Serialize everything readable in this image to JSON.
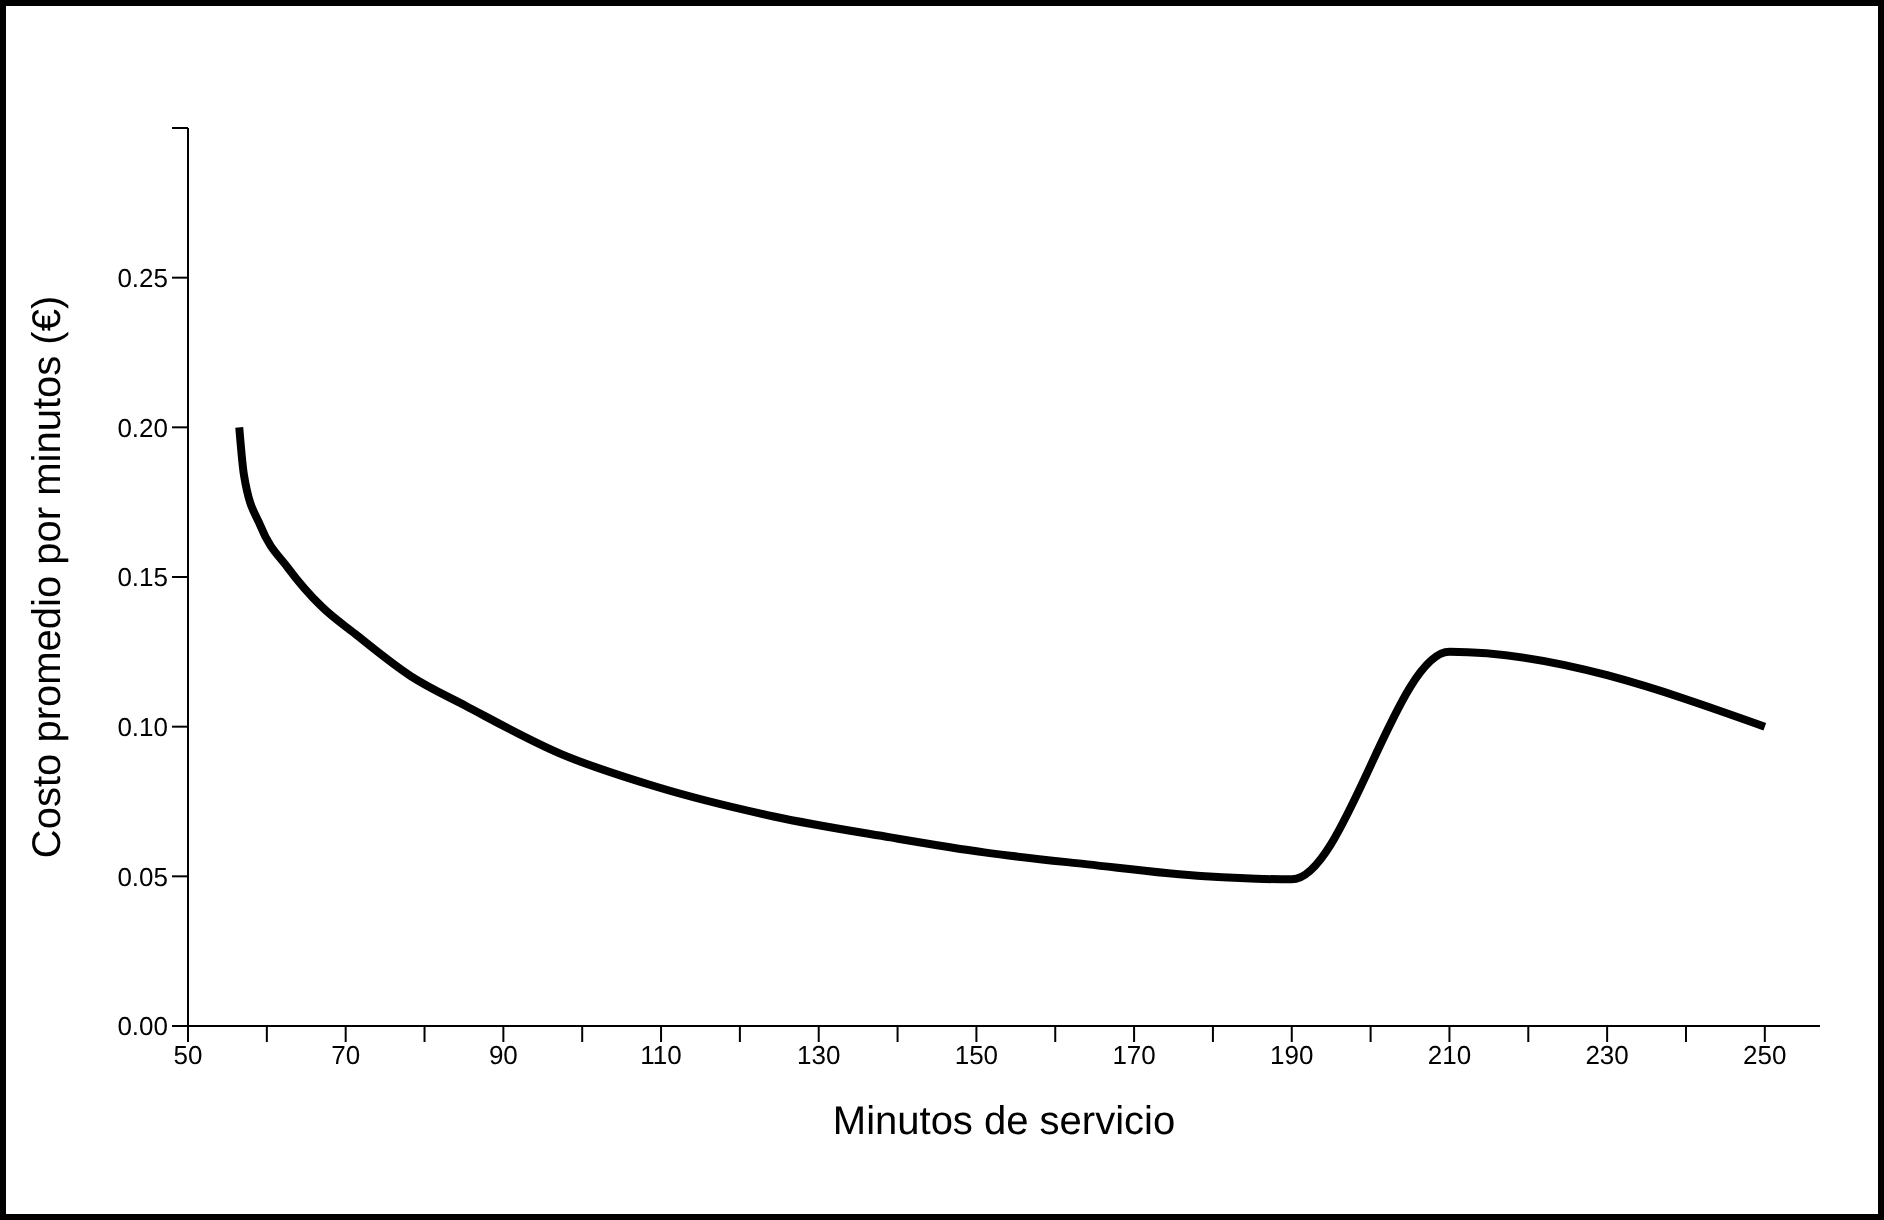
{
  "chart_data": {
    "type": "line",
    "xlabel": "Minutos de servicio",
    "ylabel": "Costo promedio por minutos (€)",
    "xlim": [
      50,
      257
    ],
    "xticks": [
      50,
      {
        "value": 60,
        "label": null
      },
      70,
      {
        "value": 80,
        "label": null
      },
      90,
      {
        "value": 100,
        "label": null
      },
      110,
      {
        "value": 120,
        "label": null
      },
      130,
      {
        "value": 140,
        "label": null
      },
      150,
      {
        "value": 160,
        "label": null
      },
      170,
      {
        "value": 180,
        "label": null
      },
      190,
      {
        "value": 200,
        "label": null
      },
      210,
      {
        "value": 220,
        "label": null
      },
      230,
      {
        "value": 240,
        "label": null
      },
      250
    ],
    "ylim": [
      0,
      0.3
    ],
    "yticks": [
      {
        "value": 0,
        "label": "0.00"
      },
      {
        "value": 0.05,
        "label": "0.05"
      },
      {
        "value": 0.1,
        "label": "0.10"
      },
      {
        "value": 0.15,
        "label": "0.15"
      },
      {
        "value": 0.2,
        "label": "0.20"
      },
      {
        "value": 0.25,
        "label": "0.25"
      },
      {
        "value": 0.3,
        "label": null
      }
    ],
    "grid": false,
    "legend": false,
    "marker": "none",
    "line_style": "solid",
    "series": [
      {
        "color": "#000000",
        "x": [
          56.5,
          57.1,
          59.2,
          62.7,
          67,
          71.2,
          78.2,
          85.2,
          97.2,
          109.3,
          124.3,
          139.1,
          151,
          164.1,
          179,
          190,
          210,
          250
        ],
        "values": [
          0.2,
          0.184,
          0.167,
          0.153,
          0.14,
          0.131,
          0.117,
          0.107,
          0.091,
          0.08,
          0.07,
          0.063,
          0.058,
          0.054,
          0.05,
          0.049,
          0.125,
          0.1
        ]
      }
    ]
  }
}
